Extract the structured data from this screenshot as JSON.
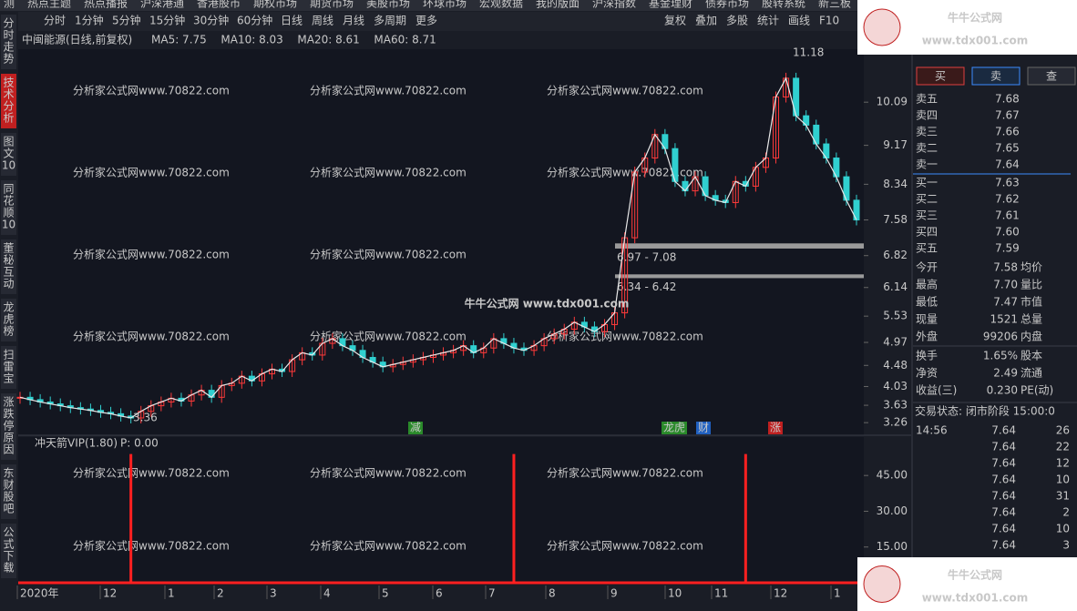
{
  "top_menu": [
    "测",
    "热点主题",
    "热点播报",
    "沪深港通",
    "香港股市",
    "期权市场",
    "期货市场",
    "美股市场",
    "环球市场",
    "宏观数据",
    "我的版面",
    "沪深指数",
    "基金理财",
    "债券市场",
    "股转系统",
    "新三板"
  ],
  "periods": [
    "分时",
    "1分钟",
    "5分钟",
    "15分钟",
    "30分钟",
    "60分钟",
    "日线",
    "周线",
    "月线",
    "多周期",
    "更多"
  ],
  "tools": [
    "复权",
    "叠加",
    "多股",
    "统计",
    "画线",
    "F10"
  ],
  "side_tabs": [
    "分时走势",
    "技术分析",
    "图文10",
    "同花顺10",
    "董秘互动",
    "龙虎榜",
    "扫雷宝",
    "涨跌停原因",
    "东财股吧",
    "公式下载"
  ],
  "chart": {
    "title": "中闽能源(日线,前复权)",
    "ma": [
      {
        "label": "MA5: 7.75",
        "color": "#e8e8e8"
      },
      {
        "label": "MA10: 8.03",
        "color": "#e8c440"
      },
      {
        "label": "MA20: 8.61",
        "color": "#e040a0"
      },
      {
        "label": "MA60: 8.71",
        "color": "#a8c830"
      }
    ],
    "ylim": [
      3.03,
      11.2
    ],
    "yticks": [
      {
        "value": 10.09,
        "label": "10.09"
      },
      {
        "value": 9.17,
        "label": "9.17"
      },
      {
        "value": 8.34,
        "label": "8.34"
      },
      {
        "value": 7.58,
        "label": "7.58"
      },
      {
        "value": 6.82,
        "label": "6.82"
      },
      {
        "value": 6.14,
        "label": "6.14"
      },
      {
        "value": 5.53,
        "label": "5.53"
      },
      {
        "value": 4.97,
        "label": "4.97"
      },
      {
        "value": 4.48,
        "label": "4.48"
      },
      {
        "value": 4.03,
        "label": "4.03"
      },
      {
        "value": 3.63,
        "label": "3.63"
      },
      {
        "value": 3.26,
        "label": "3.26"
      }
    ],
    "closes": [
      3.8,
      3.75,
      3.7,
      3.66,
      3.62,
      3.58,
      3.55,
      3.52,
      3.48,
      3.45,
      3.4,
      3.36,
      3.5,
      3.62,
      3.7,
      3.78,
      3.72,
      3.85,
      3.95,
      3.8,
      4.05,
      4.1,
      4.25,
      4.15,
      4.3,
      4.4,
      4.35,
      4.6,
      4.75,
      4.7,
      4.95,
      5.05,
      4.9,
      4.8,
      4.65,
      4.55,
      4.45,
      4.5,
      4.55,
      4.6,
      4.65,
      4.7,
      4.75,
      4.8,
      4.9,
      4.75,
      4.85,
      5.05,
      4.95,
      4.85,
      4.8,
      4.9,
      5.05,
      5.15,
      5.25,
      5.4,
      5.3,
      5.2,
      5.35,
      5.6,
      7.2,
      8.6,
      8.9,
      9.4,
      9.1,
      8.4,
      8.2,
      8.5,
      8.1,
      8.0,
      7.95,
      8.4,
      8.3,
      8.7,
      8.9,
      10.2,
      10.6,
      9.8,
      9.6,
      9.2,
      8.9,
      8.5,
      8.0,
      7.58
    ],
    "high_label": "11.18",
    "high_value": 11.18,
    "low_label": "3.36",
    "low_value": 3.36,
    "zones": [
      {
        "label": "6.97 - 7.08",
        "low": 6.97,
        "high": 7.08
      },
      {
        "label": "6.34 - 6.42",
        "low": 6.34,
        "high": 6.42
      }
    ],
    "markers": [
      "减",
      "龙虎",
      "财",
      "涨"
    ],
    "center_text": "牛牛公式网 www.tdx001.com",
    "faint": "分析家公式网www.70822.com"
  },
  "indicator": {
    "title": "冲天箭VIP(1.80)",
    "value_label": "P: 0.00",
    "ylim": [
      0,
      55
    ],
    "yticks": [
      {
        "value": 45,
        "label": "45.00"
      },
      {
        "value": 30,
        "label": "30.00"
      },
      {
        "value": 15,
        "label": "15.00"
      }
    ],
    "signals": [
      {
        "index": 11,
        "value": 54
      },
      {
        "index": 49,
        "value": 54
      },
      {
        "index": 72,
        "value": 54
      }
    ]
  },
  "x_axis": [
    "2020年",
    "12",
    "1",
    "2",
    "3",
    "4",
    "5",
    "6",
    "7",
    "8",
    "9",
    "10",
    "11",
    "12",
    "1"
  ],
  "order_book": {
    "buttons": [
      "买",
      "卖",
      "查"
    ],
    "asks": [
      [
        "卖五",
        "7.68"
      ],
      [
        "卖四",
        "7.67"
      ],
      [
        "卖三",
        "7.66"
      ],
      [
        "卖二",
        "7.65"
      ],
      [
        "卖一",
        "7.64"
      ]
    ],
    "bids": [
      [
        "买一",
        "7.63"
      ],
      [
        "买二",
        "7.62"
      ],
      [
        "买三",
        "7.61"
      ],
      [
        "买四",
        "7.60"
      ],
      [
        "买五",
        "7.59"
      ]
    ]
  },
  "stats": [
    [
      "今开",
      "7.58",
      "均价"
    ],
    [
      "最高",
      "7.70",
      "量比"
    ],
    [
      "最低",
      "7.47",
      "市值"
    ],
    [
      "现量",
      "1521",
      "总量"
    ],
    [
      "外盘",
      "99206",
      "内盘"
    ],
    [
      "换手",
      "1.65%",
      "股本"
    ],
    [
      "净资",
      "2.49",
      "流通"
    ],
    [
      "收益(三)",
      "0.230",
      "PE(动)"
    ]
  ],
  "trades": {
    "status": "交易状态: 闭市阶段 15:00:0",
    "time": "14:56",
    "rows": [
      [
        "7.64",
        "26"
      ],
      [
        "7.64",
        "22"
      ],
      [
        "7.64",
        "12"
      ],
      [
        "7.64",
        "10"
      ],
      [
        "7.64",
        "31"
      ],
      [
        "7.64",
        "2"
      ],
      [
        "7.64",
        "10"
      ],
      [
        "7.64",
        "3"
      ]
    ]
  },
  "ad": {
    "name": "牛牛公式网",
    "url": "www.tdx001.com"
  }
}
